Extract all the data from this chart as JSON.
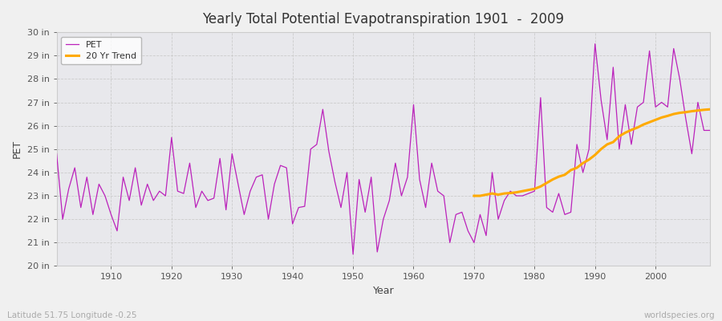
{
  "title": "Yearly Total Potential Evapotranspiration 1901  -  2009",
  "xlabel": "Year",
  "ylabel": "PET",
  "bg_color": "#f0f0f0",
  "plot_bg_color": "#e8e8ec",
  "pet_color": "#bb22bb",
  "trend_color": "#ffaa00",
  "ylim": [
    20,
    30
  ],
  "ytick_labels": [
    "20 in",
    "21 in",
    "22 in",
    "23 in",
    "24 in",
    "25 in",
    "26 in",
    "27 in",
    "28 in",
    "29 in",
    "30 in"
  ],
  "ytick_values": [
    20,
    21,
    22,
    23,
    24,
    25,
    26,
    27,
    28,
    29,
    30
  ],
  "footer_left": "Latitude 51.75 Longitude -0.25",
  "footer_right": "worldspecies.org",
  "years": [
    1901,
    1902,
    1903,
    1904,
    1905,
    1906,
    1907,
    1908,
    1909,
    1910,
    1911,
    1912,
    1913,
    1914,
    1915,
    1916,
    1917,
    1918,
    1919,
    1920,
    1921,
    1922,
    1923,
    1924,
    1925,
    1926,
    1927,
    1928,
    1929,
    1930,
    1931,
    1932,
    1933,
    1934,
    1935,
    1936,
    1937,
    1938,
    1939,
    1940,
    1941,
    1942,
    1943,
    1944,
    1945,
    1946,
    1947,
    1948,
    1949,
    1950,
    1951,
    1952,
    1953,
    1954,
    1955,
    1956,
    1957,
    1958,
    1959,
    1960,
    1961,
    1962,
    1963,
    1964,
    1965,
    1966,
    1967,
    1968,
    1969,
    1970,
    1971,
    1972,
    1973,
    1974,
    1975,
    1976,
    1977,
    1978,
    1979,
    1980,
    1981,
    1982,
    1983,
    1984,
    1985,
    1986,
    1987,
    1988,
    1989,
    1990,
    1991,
    1992,
    1993,
    1994,
    1995,
    1996,
    1997,
    1998,
    1999,
    2000,
    2001,
    2002,
    2003,
    2004,
    2005,
    2006,
    2007,
    2008,
    2009
  ],
  "pet_values": [
    24.8,
    22.0,
    23.3,
    24.2,
    22.5,
    23.8,
    22.2,
    23.5,
    23.0,
    22.2,
    21.5,
    23.8,
    22.8,
    24.2,
    22.6,
    23.5,
    22.8,
    23.2,
    23.0,
    25.5,
    23.2,
    23.1,
    24.4,
    22.5,
    23.2,
    22.8,
    22.9,
    24.6,
    22.4,
    24.8,
    23.5,
    22.2,
    23.2,
    23.8,
    23.9,
    22.0,
    23.5,
    24.3,
    24.2,
    21.8,
    22.5,
    22.55,
    25.0,
    25.2,
    26.7,
    24.9,
    23.6,
    22.5,
    24.0,
    20.5,
    23.7,
    22.3,
    23.8,
    20.6,
    22.0,
    22.8,
    24.4,
    23.0,
    23.8,
    26.9,
    23.7,
    22.5,
    24.4,
    23.2,
    23.0,
    21.0,
    22.2,
    22.3,
    21.5,
    21.0,
    22.2,
    21.3,
    24.0,
    22.0,
    22.8,
    23.2,
    23.0,
    23.0,
    23.1,
    23.2,
    27.2,
    22.5,
    22.3,
    23.1,
    22.2,
    22.3,
    25.2,
    24.0,
    25.0,
    29.5,
    27.1,
    25.4,
    28.5,
    25.0,
    26.9,
    25.2,
    26.8,
    27.0,
    29.2,
    26.8,
    27.0,
    26.8,
    29.3,
    28.0,
    26.3,
    24.8,
    27.0,
    25.8,
    25.8
  ],
  "trend_years": [
    1970,
    1971,
    1972,
    1973,
    1974,
    1975,
    1976,
    1977,
    1978,
    1979,
    1980,
    1981,
    1982,
    1983,
    1984,
    1985,
    1986,
    1987,
    1988,
    1989,
    1990,
    1991,
    1992,
    1993,
    1994,
    1995,
    1996,
    1997,
    1998,
    1999,
    2000,
    2001,
    2002,
    2003,
    2004,
    2005,
    2006,
    2007,
    2008,
    2009
  ],
  "trend_values": [
    23.0,
    23.0,
    23.05,
    23.1,
    23.05,
    23.1,
    23.12,
    23.15,
    23.2,
    23.25,
    23.3,
    23.4,
    23.55,
    23.7,
    23.82,
    23.9,
    24.1,
    24.2,
    24.4,
    24.55,
    24.75,
    25.0,
    25.2,
    25.3,
    25.55,
    25.7,
    25.82,
    25.92,
    26.05,
    26.15,
    26.25,
    26.35,
    26.42,
    26.5,
    26.55,
    26.58,
    26.62,
    26.65,
    26.68,
    26.7
  ]
}
